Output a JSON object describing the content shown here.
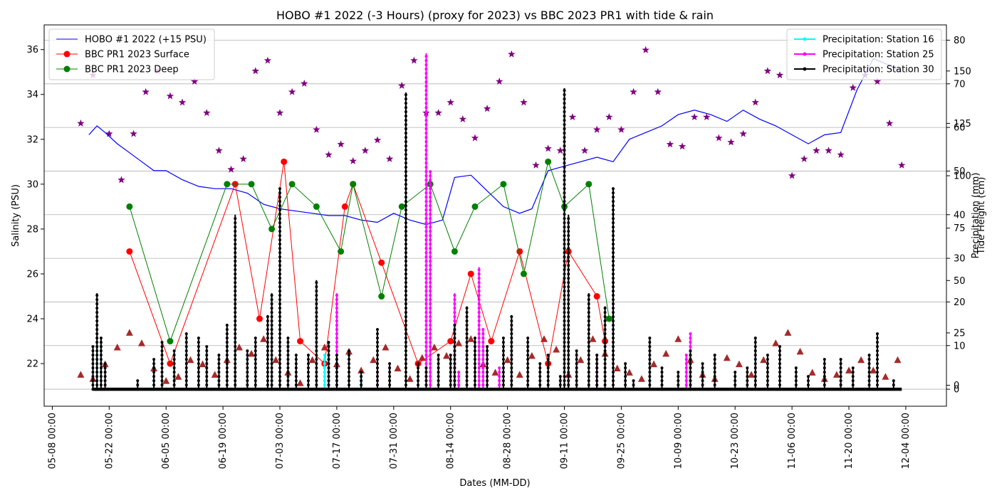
{
  "chart_data": {
    "type": "line",
    "title": "HOBO #1 2022 (-3 Hours) (proxy for 2023) vs BBC 2023 PR1 with tide & rain",
    "xlabel": "Dates (MM-DD)",
    "ylabel": "Salinity (PSU)",
    "y2label": "Precipitation (mm)",
    "y3label": "Tide Height (cm)",
    "x_ticks": [
      "05-08 00:00",
      "05-22 00:00",
      "06-05 00:00",
      "06-19 00:00",
      "07-03 00:00",
      "07-17 00:00",
      "07-31 00:00",
      "08-14 00:00",
      "08-28 00:00",
      "09-11 00:00",
      "09-25 00:00",
      "10-09 00:00",
      "10-23 00:00",
      "11-06 00:00",
      "11-20 00:00",
      "12-04 00:00"
    ],
    "x_range": [
      "05-06",
      "12-14"
    ],
    "ylim": [
      20.1,
      37.1
    ],
    "y_ticks": [
      22,
      24,
      26,
      28,
      30,
      32,
      34,
      36
    ],
    "precip_ylim": [
      -3.9,
      83.5
    ],
    "precip_ticks": [
      0,
      10,
      20,
      30,
      40,
      50,
      60,
      70,
      80
    ],
    "tide_ylim": [
      -10,
      172
    ],
    "tide_ticks": [
      0,
      25,
      50,
      75,
      100,
      125,
      150
    ],
    "grid": "horizontal lines on precipitation axis",
    "legend_left_placement": "upper-left",
    "legend_right_placement": "upper-right",
    "colors": {
      "hobo": "#0000ff",
      "surface": "#ff0000",
      "deep": "#008000",
      "station16": "#00ffff",
      "station25": "#ff00ff",
      "station30": "#000000",
      "tide_stars": "#800080",
      "tide_triangles": "#a52a2a"
    },
    "series": [
      {
        "name": "HOBO #1 2022 (+15 PSU)",
        "kind": "line",
        "x": [
          "05-17",
          "05-19",
          "05-21",
          "05-24",
          "05-27",
          "05-30",
          "06-02",
          "06-05",
          "06-09",
          "06-13",
          "06-17",
          "06-21",
          "06-25",
          "06-29",
          "07-03",
          "07-07",
          "07-11",
          "07-15",
          "07-19",
          "07-23",
          "07-27",
          "07-31",
          "08-04",
          "08-08",
          "08-12",
          "08-15",
          "08-19",
          "08-23",
          "08-27",
          "08-31",
          "09-03",
          "09-07",
          "09-11",
          "09-15",
          "09-19",
          "09-23",
          "09-27",
          "10-01",
          "10-05",
          "10-09",
          "10-13",
          "10-17",
          "10-21",
          "10-25",
          "10-29",
          "11-02",
          "11-06",
          "11-10",
          "11-14",
          "11-18",
          "11-22",
          "11-26",
          "11-30",
          "12-03"
        ],
        "values": [
          32.2,
          32.6,
          32.3,
          31.8,
          31.4,
          31.0,
          30.6,
          30.6,
          30.2,
          29.9,
          29.8,
          29.8,
          29.6,
          29.1,
          28.9,
          28.8,
          28.7,
          28.6,
          28.6,
          28.4,
          28.3,
          28.7,
          28.4,
          28.2,
          28.4,
          30.3,
          30.4,
          29.7,
          29.0,
          28.7,
          28.9,
          30.6,
          30.8,
          31.0,
          31.2,
          31.0,
          32.0,
          32.3,
          32.6,
          33.1,
          33.3,
          33.1,
          32.8,
          33.3,
          32.9,
          32.6,
          32.2,
          31.8,
          32.2,
          32.3,
          34.2,
          35.6,
          35.3,
          35.0
        ]
      },
      {
        "name": "BBC PR1 2023 Surface",
        "kind": "line-markers",
        "x": [
          "05-27",
          "06-06",
          "06-22",
          "06-28",
          "07-04",
          "07-08",
          "07-14",
          "07-19",
          "07-21",
          "07-28",
          "08-06",
          "08-14",
          "08-19",
          "08-24",
          "08-31",
          "09-07",
          "09-12",
          "09-19",
          "09-21"
        ],
        "values": [
          27,
          22,
          30,
          24,
          31,
          23,
          22,
          29,
          30,
          26.5,
          22,
          23,
          26,
          23,
          27,
          22,
          27,
          25,
          23
        ]
      },
      {
        "name": "BBC PR1 2023 Deep",
        "kind": "line-markers",
        "x": [
          "05-27",
          "06-06",
          "06-20",
          "06-26",
          "07-01",
          "07-06",
          "07-12",
          "07-18",
          "07-21",
          "07-28",
          "08-02",
          "08-09",
          "08-15",
          "08-20",
          "08-27",
          "09-01",
          "09-07",
          "09-11",
          "09-17",
          "09-22"
        ],
        "values": [
          29,
          23,
          30,
          30,
          28,
          30,
          29,
          27,
          30,
          25,
          29,
          30,
          27,
          29,
          30,
          26,
          31,
          29,
          30,
          24
        ]
      }
    ],
    "precipitation": [
      {
        "name": "Precipitation: Station 16",
        "x": [
          "05-18",
          "05-19",
          "06-02",
          "07-14",
          "07-23"
        ],
        "values": [
          0,
          10,
          2,
          8,
          3
        ]
      },
      {
        "name": "Precipitation: Station 25",
        "x": [
          "07-15",
          "07-17",
          "07-27",
          "08-08",
          "08-09",
          "08-15",
          "08-16",
          "08-21",
          "08-22",
          "08-26",
          "09-12",
          "09-19",
          "10-11",
          "10-12"
        ],
        "values": [
          8,
          22,
          4,
          77,
          50,
          22,
          4,
          28,
          14,
          5,
          3,
          8,
          8,
          13
        ]
      },
      {
        "name": "Precipitation: Station 30",
        "x": [
          "05-18",
          "05-19",
          "05-20",
          "05-21",
          "05-29",
          "06-02",
          "06-04",
          "06-07",
          "06-10",
          "06-13",
          "06-15",
          "06-18",
          "06-20",
          "06-22",
          "06-25",
          "06-27",
          "06-30",
          "07-01",
          "07-03",
          "07-05",
          "07-07",
          "07-10",
          "07-12",
          "07-15",
          "07-17",
          "07-20",
          "07-23",
          "07-27",
          "07-30",
          "08-03",
          "08-06",
          "08-08",
          "08-11",
          "08-14",
          "08-15",
          "08-18",
          "08-20",
          "08-23",
          "08-27",
          "08-29",
          "09-02",
          "09-05",
          "09-07",
          "09-10",
          "09-11",
          "09-12",
          "09-14",
          "09-17",
          "09-19",
          "09-21",
          "09-23",
          "09-26",
          "09-28",
          "10-02",
          "10-05",
          "10-09",
          "10-12",
          "10-15",
          "10-18",
          "10-23",
          "10-26",
          "10-28",
          "10-31",
          "11-03",
          "11-07",
          "11-10",
          "11-14",
          "11-18",
          "11-21",
          "11-25",
          "11-27",
          "12-01"
        ],
        "values": [
          10,
          22,
          12,
          6,
          2,
          7,
          11,
          9,
          13,
          12,
          10,
          8,
          15,
          40,
          9,
          12,
          17,
          22,
          46,
          12,
          8,
          8,
          25,
          11,
          8,
          9,
          4,
          14,
          6,
          68,
          6,
          5,
          8,
          8,
          15,
          19,
          12,
          10,
          12,
          17,
          12,
          6,
          8,
          3,
          69,
          40,
          9,
          22,
          8,
          19,
          46,
          6,
          2,
          12,
          5,
          4,
          9,
          6,
          8,
          4,
          5,
          12,
          8,
          10,
          5,
          3,
          7,
          7,
          5,
          8,
          13,
          2
        ]
      }
    ],
    "tide_series": [
      {
        "name": "tide stars",
        "marker": "star",
        "x": [
          "05-15",
          "05-18",
          "05-22",
          "05-25",
          "05-28",
          "05-31",
          "06-03",
          "06-06",
          "06-09",
          "06-12",
          "06-15",
          "06-18",
          "06-21",
          "06-24",
          "06-27",
          "06-30",
          "07-03",
          "07-06",
          "07-09",
          "07-12",
          "07-15",
          "07-18",
          "07-21",
          "07-24",
          "07-27",
          "07-30",
          "08-02",
          "08-05",
          "08-08",
          "08-11",
          "08-14",
          "08-17",
          "08-20",
          "08-23",
          "08-26",
          "08-29",
          "09-01",
          "09-04",
          "09-07",
          "09-10",
          "09-13",
          "09-16",
          "09-19",
          "09-22",
          "09-25",
          "09-28",
          "10-01",
          "10-04",
          "10-07",
          "10-10",
          "10-13",
          "10-16",
          "10-19",
          "10-22",
          "10-25",
          "10-28",
          "10-31",
          "11-03",
          "11-06",
          "11-09",
          "11-12",
          "11-15",
          "11-18",
          "11-21",
          "11-24",
          "11-27",
          "11-30",
          "12-03"
        ],
        "values": [
          125,
          148,
          120,
          98,
          120,
          140,
          150,
          138,
          135,
          145,
          130,
          112,
          103,
          108,
          150,
          155,
          130,
          140,
          144,
          122,
          110,
          115,
          107,
          112,
          117,
          108,
          143,
          155,
          130,
          130,
          135,
          127,
          118,
          132,
          145,
          158,
          135,
          105,
          113,
          112,
          128,
          112,
          122,
          128,
          122,
          140,
          160,
          140,
          115,
          114,
          128,
          128,
          118,
          116,
          120,
          135,
          150,
          148,
          100,
          108,
          112,
          112,
          110,
          142,
          148,
          145,
          125,
          105
        ]
      },
      {
        "name": "tide triangles",
        "marker": "triangle",
        "x": [
          "05-15",
          "05-18",
          "05-21",
          "05-24",
          "05-27",
          "05-30",
          "06-02",
          "06-05",
          "06-08",
          "06-11",
          "06-14",
          "06-17",
          "06-20",
          "06-23",
          "06-26",
          "06-29",
          "07-02",
          "07-05",
          "07-08",
          "07-11",
          "07-14",
          "07-17",
          "07-20",
          "07-23",
          "07-26",
          "07-29",
          "08-01",
          "08-04",
          "08-07",
          "08-10",
          "08-13",
          "08-16",
          "08-19",
          "08-22",
          "08-25",
          "08-28",
          "08-31",
          "09-03",
          "09-06",
          "09-09",
          "09-12",
          "09-15",
          "09-18",
          "09-21",
          "09-24",
          "09-27",
          "09-30",
          "10-03",
          "10-06",
          "10-09",
          "10-12",
          "10-15",
          "10-18",
          "10-21",
          "10-24",
          "10-27",
          "10-30",
          "11-02",
          "11-05",
          "11-08",
          "11-11",
          "11-14",
          "11-17",
          "11-20",
          "11-23",
          "11-26",
          "11-29",
          "12-02"
        ],
        "values": [
          5,
          3,
          10,
          18,
          25,
          20,
          8,
          2,
          4,
          12,
          10,
          5,
          12,
          18,
          15,
          22,
          12,
          6,
          1,
          12,
          18,
          10,
          16,
          7,
          12,
          18,
          8,
          3,
          13,
          18,
          14,
          20,
          22,
          10,
          6,
          12,
          5,
          14,
          22,
          17,
          5,
          12,
          22,
          15,
          8,
          6,
          3,
          10,
          15,
          22,
          12,
          5,
          3,
          13,
          10,
          5,
          12,
          20,
          25,
          16,
          6,
          3,
          5,
          7,
          12,
          7,
          4,
          12
        ]
      }
    ],
    "legend_left": [
      "HOBO #1 2022 (+15 PSU)",
      "BBC PR1 2023 Surface",
      "BBC PR1 2023 Deep"
    ],
    "legend_right": [
      "Precipitation: Station 16",
      "Precipitation: Station 25",
      "Precipitation: Station 30"
    ]
  }
}
